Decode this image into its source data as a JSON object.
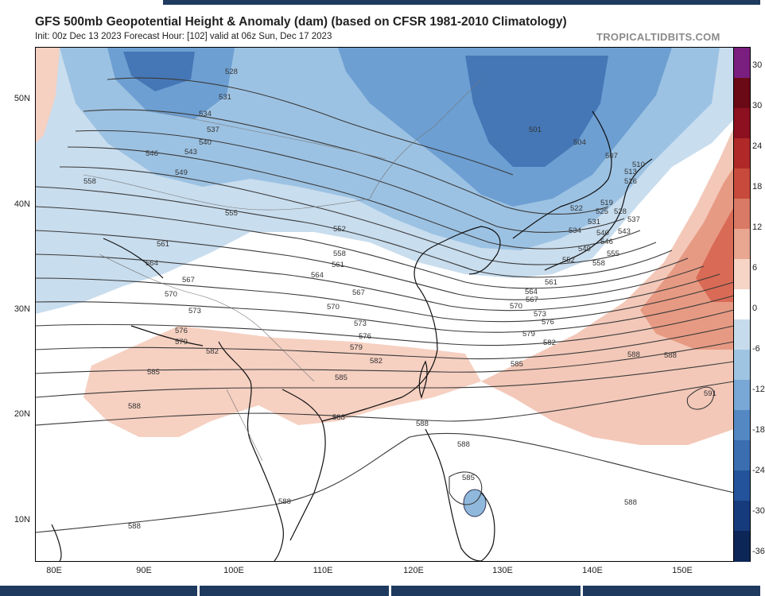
{
  "header": {
    "title": "GFS 500mb Geopotential Height & Anomaly (dam) (based on CFSR 1981-2010 Climatology)",
    "subtitle": "Init: 00z Dec 13 2023   Forecast Hour: [102]   valid at 06z Sun, Dec 17 2023",
    "brand": "TROPICALTIDBITS.COM"
  },
  "axes": {
    "lat_labels": [
      "50N",
      "40N",
      "30N",
      "20N",
      "10N"
    ],
    "lon_labels": [
      "80E",
      "90E",
      "100E",
      "110E",
      "120E",
      "130E",
      "140E",
      "150E"
    ]
  },
  "colorbar": {
    "labels": [
      "30",
      "30",
      "24",
      "18",
      "12",
      "6",
      "0",
      "-6",
      "-12",
      "-18",
      "-24",
      "-30",
      "-36"
    ],
    "colors": [
      "#7a1f7f",
      "#6a0a16",
      "#8c1020",
      "#b02828",
      "#c84a3c",
      "#d97a66",
      "#e9a691",
      "#f6d4c6",
      "#ffffff",
      "#c6dcec",
      "#9fc4e2",
      "#79a8d6",
      "#5388c3",
      "#3b6eb0",
      "#23539a",
      "#163b7c",
      "#0c2657"
    ]
  },
  "map": {
    "contour_labels": [
      {
        "t": "528"
      },
      {
        "t": "531"
      },
      {
        "t": "534"
      },
      {
        "t": "537"
      },
      {
        "t": "540"
      },
      {
        "t": "543"
      },
      {
        "t": "546"
      },
      {
        "t": "549"
      },
      {
        "t": "558"
      },
      {
        "t": "555"
      },
      {
        "t": "552"
      },
      {
        "t": "558"
      },
      {
        "t": "561"
      },
      {
        "t": "561"
      },
      {
        "t": "564"
      },
      {
        "t": "564"
      },
      {
        "t": "567"
      },
      {
        "t": "567"
      },
      {
        "t": "570"
      },
      {
        "t": "570"
      },
      {
        "t": "573"
      },
      {
        "t": "573"
      },
      {
        "t": "576"
      },
      {
        "t": "576"
      },
      {
        "t": "579"
      },
      {
        "t": "579"
      },
      {
        "t": "582"
      },
      {
        "t": "582"
      },
      {
        "t": "585"
      },
      {
        "t": "585"
      },
      {
        "t": "588"
      },
      {
        "t": "588"
      },
      {
        "t": "588"
      },
      {
        "t": "588"
      },
      {
        "t": "588"
      },
      {
        "t": "588"
      },
      {
        "t": "585"
      },
      {
        "t": "501"
      },
      {
        "t": "504"
      },
      {
        "t": "507"
      },
      {
        "t": "510"
      },
      {
        "t": "513"
      },
      {
        "t": "516"
      },
      {
        "t": "519"
      },
      {
        "t": "522"
      },
      {
        "t": "525"
      },
      {
        "t": "528"
      },
      {
        "t": "531"
      },
      {
        "t": "534"
      },
      {
        "t": "537"
      },
      {
        "t": "540"
      },
      {
        "t": "543"
      },
      {
        "t": "546"
      },
      {
        "t": "549"
      },
      {
        "t": "552"
      },
      {
        "t": "555"
      },
      {
        "t": "558"
      },
      {
        "t": "561"
      },
      {
        "t": "564"
      },
      {
        "t": "567"
      },
      {
        "t": "570"
      },
      {
        "t": "573"
      },
      {
        "t": "576"
      },
      {
        "t": "579"
      },
      {
        "t": "582"
      },
      {
        "t": "585"
      },
      {
        "t": "588"
      },
      {
        "t": "591"
      },
      {
        "t": "588"
      },
      {
        "t": "588"
      }
    ]
  }
}
